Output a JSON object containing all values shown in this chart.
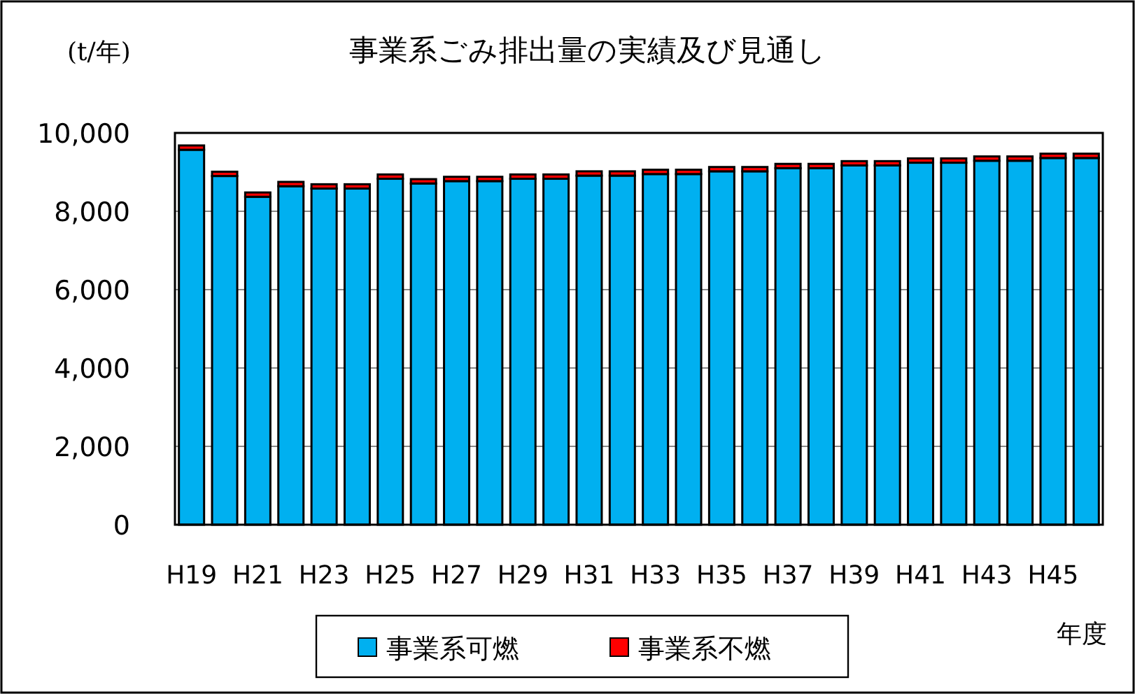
{
  "chart_data": {
    "type": "bar",
    "title": "事業系ごみ排出量の実績及び見通し",
    "ylabel": "(t/年)",
    "xlabel": "年度",
    "categories": [
      "H19",
      null,
      "H21",
      null,
      "H23",
      null,
      "H25",
      null,
      "H27",
      null,
      "H29",
      null,
      "H31",
      null,
      "H33",
      null,
      "H35",
      null,
      "H37",
      null,
      "H39",
      null,
      "H41",
      null,
      "H43",
      null,
      "H45",
      null
    ],
    "series": [
      {
        "name": "事業系可燃",
        "color": "#00b0f0",
        "values": [
          9570,
          8900,
          8370,
          8640,
          8580,
          8580,
          8830,
          8710,
          8770,
          8770,
          8830,
          8830,
          8910,
          8910,
          8950,
          8950,
          9020,
          9020,
          9100,
          9100,
          9170,
          9170,
          9240,
          9240,
          9290,
          9290,
          9360,
          9360
        ]
      },
      {
        "name": "事業系不燃",
        "color": "#ff0000",
        "values": [
          110,
          110,
          110,
          110,
          110,
          110,
          110,
          110,
          110,
          110,
          110,
          110,
          110,
          110,
          110,
          110,
          110,
          110,
          110,
          110,
          110,
          110,
          110,
          110,
          110,
          110,
          110,
          110
        ]
      }
    ],
    "stacked": true,
    "ylim": [
      0,
      10000
    ],
    "yticks": [
      0,
      {
        "value": 2000,
        "label": "2,000"
      },
      {
        "value": 4000,
        "label": "4,000"
      },
      {
        "value": 6000,
        "label": "6,000"
      },
      {
        "value": 8000,
        "label": "8,000"
      },
      {
        "value": 10000,
        "label": "10,000"
      }
    ],
    "grid": "y",
    "legend": "bottom"
  }
}
